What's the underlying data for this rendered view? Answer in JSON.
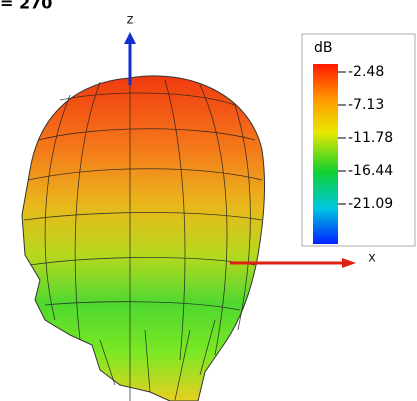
{
  "title": "= 270",
  "axes": {
    "z": "z",
    "x": "x"
  },
  "colorbar": {
    "unit": "dB",
    "ticks": [
      -2.48,
      -7.13,
      -11.78,
      -16.44,
      -21.09
    ]
  }
}
